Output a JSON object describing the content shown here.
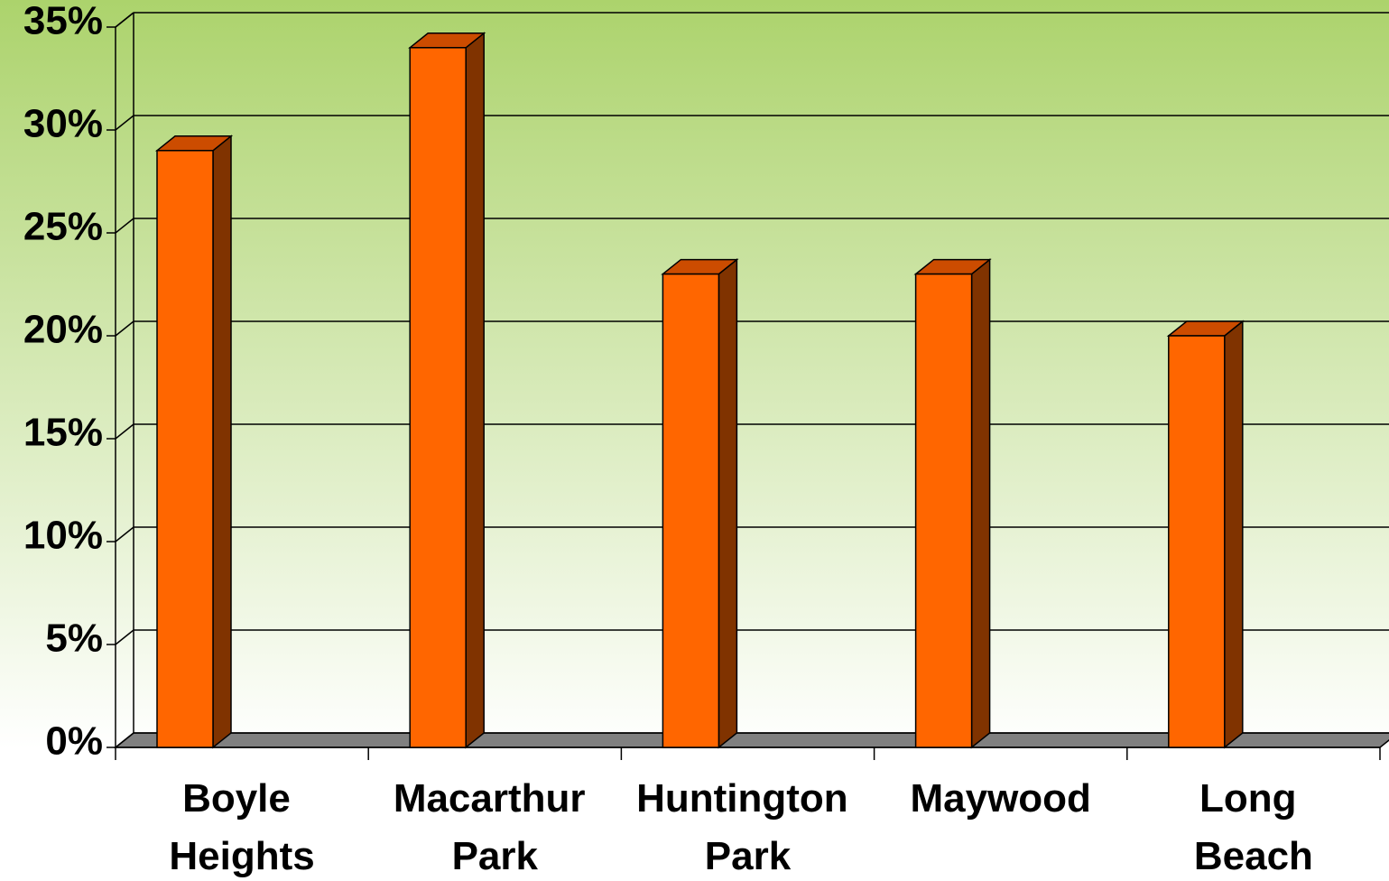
{
  "chart_data": {
    "type": "bar",
    "categories": [
      "Boyle Heights",
      "Macarthur Park",
      "Huntington Park",
      "Maywood",
      "Long Beach"
    ],
    "values": [
      29,
      34,
      23,
      23,
      20
    ],
    "color": "#ff6600",
    "ylim": [
      0,
      35
    ],
    "yticks": [
      {
        "value": 0,
        "label": "0%"
      },
      {
        "value": 5,
        "label": "5%"
      },
      {
        "value": 10,
        "label": "10%"
      },
      {
        "value": 15,
        "label": "15%"
      },
      {
        "value": 20,
        "label": "20%"
      },
      {
        "value": 25,
        "label": "25%"
      },
      {
        "value": 30,
        "label": "30%"
      },
      {
        "value": 35,
        "label": "35%"
      }
    ],
    "grid": true
  }
}
